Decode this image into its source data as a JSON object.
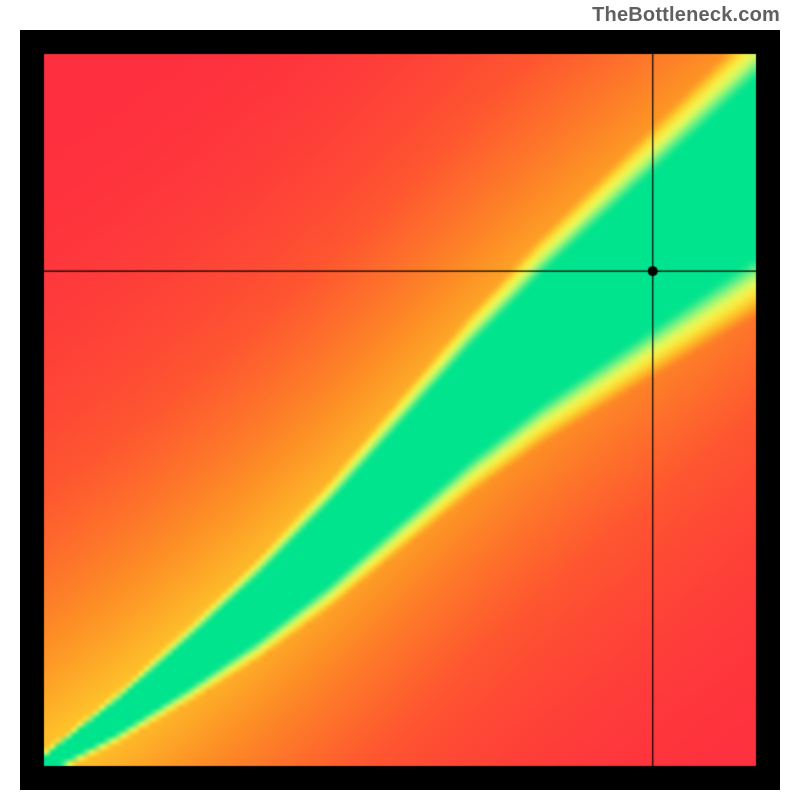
{
  "attribution": "TheBottleneck.com",
  "chart": {
    "type": "heatmap",
    "outer_width": 760,
    "outer_height": 760,
    "frame_thickness": 24,
    "frame_color": "#000000",
    "inner_width": 712,
    "inner_height": 712,
    "grid_size": 128,
    "colormap_stops": [
      {
        "t": 0.0,
        "color": "#fe2f3f"
      },
      {
        "t": 0.18,
        "color": "#fe5530"
      },
      {
        "t": 0.36,
        "color": "#fd8f25"
      },
      {
        "t": 0.52,
        "color": "#fdc42a"
      },
      {
        "t": 0.66,
        "color": "#faea40"
      },
      {
        "t": 0.78,
        "color": "#e6f95a"
      },
      {
        "t": 0.88,
        "color": "#a2f776"
      },
      {
        "t": 0.95,
        "color": "#52ed89"
      },
      {
        "t": 1.0,
        "color": "#00e48d"
      }
    ],
    "ridge": {
      "curve_points": [
        {
          "u": 0.0,
          "v": 0.0
        },
        {
          "u": 0.1,
          "v": 0.065
        },
        {
          "u": 0.2,
          "v": 0.14
        },
        {
          "u": 0.3,
          "v": 0.22
        },
        {
          "u": 0.4,
          "v": 0.31
        },
        {
          "u": 0.5,
          "v": 0.41
        },
        {
          "u": 0.6,
          "v": 0.51
        },
        {
          "u": 0.7,
          "v": 0.6
        },
        {
          "u": 0.8,
          "v": 0.68
        },
        {
          "u": 0.9,
          "v": 0.76
        },
        {
          "u": 1.0,
          "v": 0.84
        }
      ],
      "width_start": 0.01,
      "width_end": 0.12,
      "falloff_start": 0.02,
      "falloff_end": 0.14,
      "base_field_midpoint": 0.55,
      "base_field_softness": 0.95
    },
    "crosshair": {
      "u": 0.855,
      "v": 0.695,
      "line_color": "#000000",
      "line_width": 1.2,
      "dot_radius": 5,
      "dot_color": "#000000"
    }
  }
}
